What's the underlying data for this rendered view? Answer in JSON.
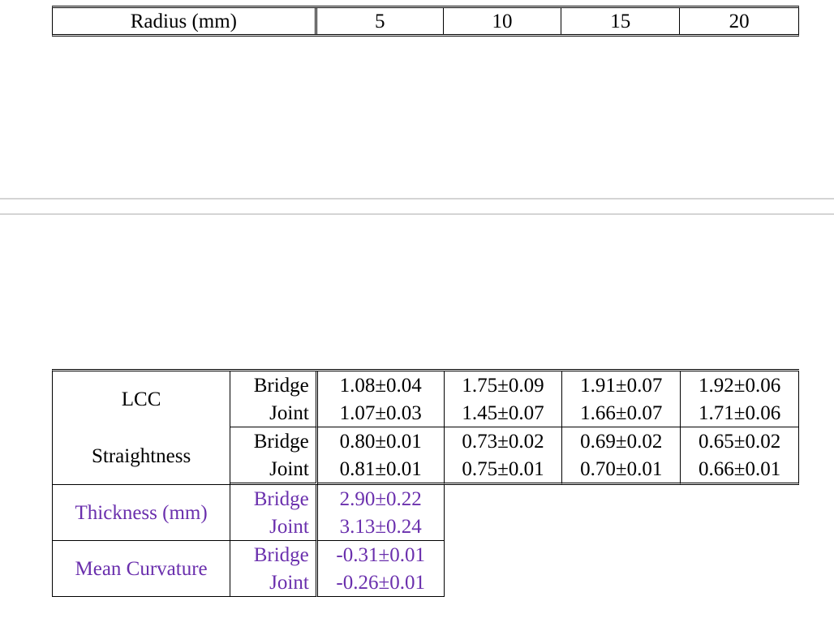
{
  "header": {
    "label": "Radius (mm)",
    "radii": [
      "5",
      "10",
      "15",
      "20"
    ]
  },
  "rows": [
    {
      "metric": "LCC",
      "sub": "Bridge",
      "values": [
        "1.08±0.04",
        "1.75±0.09",
        "1.91±0.07",
        "1.92±0.06"
      ]
    },
    {
      "metric": "",
      "sub": "Joint",
      "values": [
        "1.07±0.03",
        "1.45±0.07",
        "1.66±0.07",
        "1.71±0.06"
      ]
    },
    {
      "metric": "Straightness",
      "sub": "Bridge",
      "values": [
        "0.80±0.01",
        "0.73±0.02",
        "0.69±0.02",
        "0.65±0.02"
      ]
    },
    {
      "metric": "",
      "sub": "Joint",
      "values": [
        "0.81±0.01",
        "0.75±0.01",
        "0.70±0.01",
        "0.66±0.01"
      ]
    },
    {
      "metric": "Thickness (mm)",
      "sub": "Bridge",
      "values": [
        "2.90±0.22"
      ]
    },
    {
      "metric": "",
      "sub": "Joint",
      "values": [
        "3.13±0.24"
      ]
    },
    {
      "metric": "Mean Curvature",
      "sub": "Bridge",
      "values": [
        "-0.31±0.01"
      ]
    },
    {
      "metric": "",
      "sub": "Joint",
      "values": [
        "-0.26±0.01"
      ]
    }
  ],
  "colors": {
    "text": "#000000",
    "highlight": "#6a2fad",
    "separator": "#d4d4d4"
  }
}
